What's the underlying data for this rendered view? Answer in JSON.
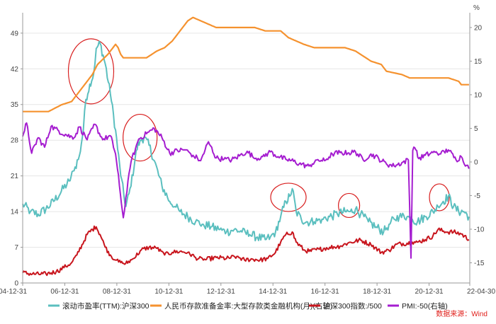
{
  "chart_data": {
    "type": "line",
    "right_axis_unit": "%",
    "x_ticks": [
      "04-12-31",
      "06-12-31",
      "08-12-31",
      "10-12-31",
      "12-12-31",
      "14-12-31",
      "16-12-31",
      "18-12-31",
      "20-12-31",
      "22-04-30"
    ],
    "left_ticks": [
      0,
      7,
      14,
      21,
      28,
      35,
      42,
      49
    ],
    "right_ticks": [
      -15,
      -10,
      -5,
      0,
      5,
      10,
      15,
      20
    ],
    "left_ylim": [
      0,
      53
    ],
    "right_ylim": [
      -18,
      22.2
    ],
    "grid": true,
    "legend_position": "bottom",
    "source": "数据来源：Wind",
    "series": [
      {
        "name": "滚动市盈率(TTM):沪深300",
        "axis": "left",
        "color": "#5bbfbf",
        "x": [
          2005.0,
          2005.3,
          2005.6,
          2005.9,
          2006.2,
          2006.5,
          2006.8,
          2006.99,
          2007.2,
          2007.35,
          2007.45,
          2007.6,
          2007.75,
          2007.85,
          2008.0,
          2008.2,
          2008.4,
          2008.6,
          2008.8,
          2009.0,
          2009.2,
          2009.4,
          2009.55,
          2009.7,
          2009.9,
          2010.1,
          2010.4,
          2010.7,
          2010.9,
          2011.1,
          2011.4,
          2011.7,
          2012.0,
          2012.3,
          2012.6,
          2012.9,
          2013.2,
          2013.5,
          2013.8,
          2014.1,
          2014.4,
          2014.6,
          2014.8,
          2015.0,
          2015.2,
          2015.35,
          2015.45,
          2015.6,
          2015.8,
          2016.0,
          2016.3,
          2016.6,
          2016.9,
          2017.2,
          2017.5,
          2017.7,
          2017.9,
          2018.1,
          2018.4,
          2018.7,
          2018.99,
          2019.2,
          2019.4,
          2019.6,
          2019.9,
          2020.1,
          2020.3,
          2020.6,
          2020.9,
          2021.1,
          2021.3,
          2021.5,
          2021.7,
          2021.9,
          2022.1,
          2022.3
        ],
        "y": [
          15.5,
          14,
          13.5,
          14.5,
          16,
          18,
          20,
          22,
          25,
          30,
          36,
          39,
          41,
          46,
          47,
          43,
          37,
          30,
          21,
          15,
          19,
          26,
          28,
          28.5,
          27,
          24,
          19,
          16,
          15,
          14,
          13,
          12,
          11.5,
          11,
          10.5,
          10,
          10.5,
          10,
          9.5,
          9,
          8.5,
          9,
          10,
          13,
          16,
          17,
          18.5,
          14,
          12.5,
          12,
          12,
          12.5,
          13,
          13.5,
          14,
          14,
          14.5,
          13.5,
          12,
          11,
          10,
          11.5,
          12.5,
          13,
          13,
          12.5,
          12,
          13,
          14,
          15,
          16,
          17,
          15,
          14,
          14,
          13
        ]
      },
      {
        "name": "人民币存款准备金率:大型存款类金融机构(月)(右轴)",
        "axis": "right",
        "color": "#f5922f",
        "x": [
          2005.0,
          2006.0,
          2006.5,
          2006.9,
          2007.1,
          2007.3,
          2007.5,
          2007.7,
          2007.9,
          2008.3,
          2008.6,
          2008.7,
          2008.8,
          2008.9,
          2009.8,
          2010.0,
          2010.2,
          2010.5,
          2010.8,
          2011.0,
          2011.2,
          2011.4,
          2011.6,
          2011.9,
          2012.2,
          2012.5,
          2012.9,
          2014.0,
          2014.4,
          2015.0,
          2015.3,
          2015.6,
          2015.9,
          2016.3,
          2017.5,
          2017.9,
          2018.3,
          2018.5,
          2018.9,
          2019.1,
          2019.7,
          2020.0,
          2020.3,
          2020.6,
          2021.5,
          2021.9,
          2022.0,
          2022.3
        ],
        "y": [
          7.5,
          7.5,
          8.5,
          9,
          10,
          11,
          12,
          13,
          14.5,
          16,
          17.5,
          17,
          16,
          15.5,
          15.5,
          16,
          16.5,
          17,
          18,
          19,
          20,
          21,
          21.5,
          21,
          20.5,
          20,
          20,
          20,
          19.5,
          19.5,
          18.5,
          18,
          17.5,
          17,
          17,
          16.5,
          15.5,
          15,
          14.5,
          13.5,
          13,
          12.5,
          12.5,
          12.5,
          12.5,
          12,
          11.5,
          11.5
        ]
      },
      {
        "name": "沪深300指数:/500",
        "axis": "left",
        "color": "#c8151d",
        "x": [
          2005.0,
          2005.5,
          2005.9,
          2006.3,
          2006.6,
          2006.9,
          2007.1,
          2007.3,
          2007.5,
          2007.7,
          2007.85,
          2008.0,
          2008.2,
          2008.4,
          2008.6,
          2008.8,
          2008.99,
          2009.3,
          2009.6,
          2009.9,
          2010.2,
          2010.5,
          2010.8,
          2011.1,
          2011.4,
          2011.7,
          2012.0,
          2012.5,
          2012.9,
          2013.3,
          2013.6,
          2013.9,
          2014.2,
          2014.5,
          2014.8,
          2015.0,
          2015.2,
          2015.45,
          2015.6,
          2015.9,
          2016.1,
          2016.5,
          2016.9,
          2017.3,
          2017.6,
          2017.9,
          2018.1,
          2018.5,
          2018.9,
          2019.2,
          2019.5,
          2019.9,
          2020.1,
          2020.3,
          2020.6,
          2020.9,
          2021.1,
          2021.4,
          2021.7,
          2022.0,
          2022.3
        ],
        "y": [
          2,
          1.7,
          1.8,
          2.2,
          3,
          4,
          5.5,
          7.5,
          9.5,
          10.5,
          11,
          9.5,
          7,
          5.5,
          4.5,
          4,
          3.8,
          4.8,
          6.5,
          7,
          6.8,
          5.5,
          6,
          6.2,
          6,
          5,
          4.5,
          5,
          4.8,
          5.2,
          4.5,
          4.7,
          4.5,
          4.8,
          6,
          8,
          9.5,
          10,
          8,
          6.5,
          6.2,
          6.6,
          7,
          7.2,
          7.8,
          8.2,
          8.4,
          7.5,
          6,
          6.4,
          7.6,
          7.8,
          8,
          8,
          8.5,
          9.2,
          10.5,
          10,
          10,
          9.6,
          8.5
        ]
      },
      {
        "name": "PMI:-50(右轴)",
        "axis": "right",
        "color": "#a51dd0",
        "x": [
          2005.0,
          2005.15,
          2005.35,
          2005.6,
          2005.85,
          2006.1,
          2006.4,
          2006.7,
          2006.99,
          2007.2,
          2007.5,
          2007.8,
          2008.1,
          2008.4,
          2008.6,
          2008.75,
          2008.9,
          2009.0,
          2009.2,
          2009.5,
          2009.8,
          2010.1,
          2010.4,
          2010.7,
          2011.0,
          2011.3,
          2011.6,
          2011.9,
          2012.2,
          2012.5,
          2012.8,
          2013.1,
          2013.4,
          2013.7,
          2014.0,
          2014.3,
          2014.6,
          2014.9,
          2015.2,
          2015.5,
          2015.8,
          2016.1,
          2016.4,
          2016.7,
          2017.0,
          2017.3,
          2017.6,
          2017.9,
          2018.2,
          2018.5,
          2018.8,
          2019.1,
          2019.4,
          2019.7,
          2019.95,
          2020.05,
          2020.12,
          2020.2,
          2020.35,
          2020.6,
          2020.9,
          2021.2,
          2021.5,
          2021.8,
          2022.0,
          2022.2,
          2022.3
        ],
        "y": [
          3.8,
          5.8,
          1.3,
          3.6,
          2.2,
          5.3,
          4.6,
          4.0,
          3.6,
          5.2,
          3.3,
          5.6,
          3.3,
          3.9,
          1.2,
          -3.5,
          -8.3,
          -5.3,
          0.0,
          3.4,
          4.2,
          5.0,
          3.6,
          1.3,
          1.7,
          1.8,
          1.0,
          0.2,
          3.0,
          0.6,
          0.4,
          0.3,
          0.9,
          1.6,
          0.5,
          0.8,
          1.5,
          0.8,
          0.4,
          0.1,
          -0.4,
          -0.6,
          0.3,
          0.2,
          1.2,
          1.4,
          1.3,
          1.5,
          0.3,
          1.2,
          0.5,
          -0.3,
          -0.6,
          -0.1,
          0.3,
          -14.3,
          1.7,
          2.1,
          0.5,
          1.0,
          1.4,
          1.2,
          1.8,
          0.3,
          0.8,
          -0.5,
          -1.0
        ]
      }
    ]
  }
}
